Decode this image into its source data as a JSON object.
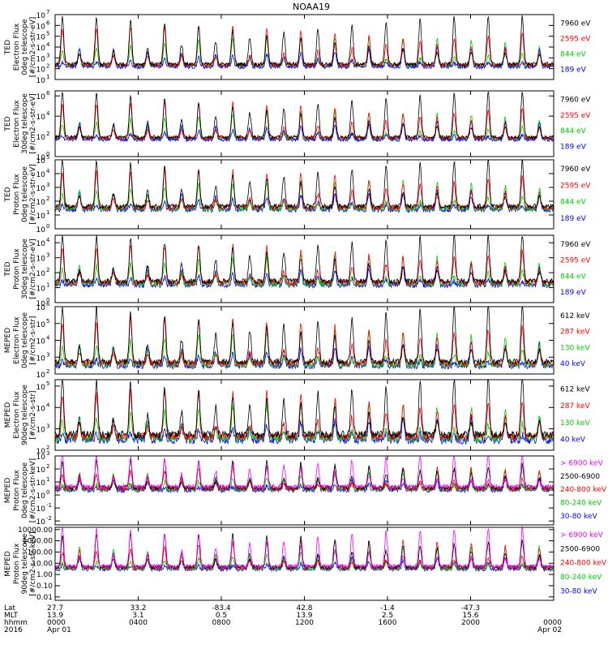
{
  "chart_data": {
    "type": "line",
    "title": "NOAA19",
    "panels": [
      {
        "instrument": "TED",
        "quantity": "Electron Flux",
        "telescope": "0deg telescope",
        "units": "[#/cm2-s-str-eV]",
        "yticks": [
          {
            "b": "10",
            "e": "1"
          },
          {
            "b": "10",
            "e": "2"
          },
          {
            "b": "10",
            "e": "3"
          },
          {
            "b": "10",
            "e": "4"
          },
          {
            "b": "10",
            "e": "5"
          },
          {
            "b": "10",
            "e": "6"
          },
          {
            "b": "10",
            "e": "7"
          }
        ],
        "ylim": [
          1,
          7
        ],
        "baseline": 2.0,
        "legend": [
          "7960 eV",
          "2595 eV",
          "844 eV",
          "189 eV"
        ],
        "colors": [
          "#000000",
          "#ff0000",
          "#00d000",
          "#0000ff"
        ],
        "order": [
          2,
          3,
          1,
          0
        ]
      },
      {
        "instrument": "TED",
        "quantity": "Electron Flux",
        "telescope": "30deg telescope",
        "units": "[#/cm2-s-str-eV]",
        "yticks": [
          {
            "b": "10",
            "e": "0"
          },
          {
            "b": "10",
            "e": "2"
          },
          {
            "b": "10",
            "e": "4"
          },
          {
            "b": "10",
            "e": "6"
          }
        ],
        "ylim": [
          0,
          6.5
        ],
        "baseline": 1.5,
        "legend": [
          "7960 eV",
          "2595 eV",
          "844 eV",
          "189 eV"
        ],
        "colors": [
          "#000000",
          "#ff0000",
          "#00d000",
          "#0000ff"
        ],
        "order": [
          2,
          3,
          1,
          0
        ]
      },
      {
        "instrument": "TED",
        "quantity": "Proton Flux",
        "telescope": "0deg telescope",
        "units": "[#/cm2-s-str-eV]",
        "yticks": [
          {
            "b": "10",
            "e": "0"
          },
          {
            "b": "10",
            "e": "1"
          },
          {
            "b": "10",
            "e": "2"
          },
          {
            "b": "10",
            "e": "3"
          },
          {
            "b": "10",
            "e": "4"
          },
          {
            "b": "10",
            "e": "5"
          }
        ],
        "ylim": [
          0,
          5
        ],
        "baseline": 1.2,
        "legend": [
          "7960 eV",
          "2595 eV",
          "844 eV",
          "189 eV"
        ],
        "colors": [
          "#000000",
          "#ff0000",
          "#00d000",
          "#0000ff"
        ],
        "order": [
          3,
          2,
          1,
          0
        ]
      },
      {
        "instrument": "TED",
        "quantity": "Proton Flux",
        "telescope": "30deg telescope",
        "units": "[#/cm2-s-str-eV]",
        "yticks": [
          {
            "b": "10",
            "e": "0"
          },
          {
            "b": "10",
            "e": "1"
          },
          {
            "b": "10",
            "e": "2"
          },
          {
            "b": "10",
            "e": "3"
          },
          {
            "b": "10",
            "e": "4"
          }
        ],
        "ylim": [
          0,
          4.5
        ],
        "baseline": 1.0,
        "legend": [
          "7960 eV",
          "2595 eV",
          "844 eV",
          "189 eV"
        ],
        "colors": [
          "#000000",
          "#ff0000",
          "#00d000",
          "#0000ff"
        ],
        "order": [
          3,
          2,
          1,
          0
        ]
      },
      {
        "instrument": "MEPED",
        "quantity": "Electron Flux",
        "telescope": "0deg telescope",
        "units": "[#/cm2-s-str]",
        "yticks": [
          {
            "b": "10",
            "e": "2"
          },
          {
            "b": "10",
            "e": "3"
          },
          {
            "b": "10",
            "e": "4"
          },
          {
            "b": "10",
            "e": "5"
          },
          {
            "b": "10",
            "e": "6"
          }
        ],
        "ylim": [
          2,
          6
        ],
        "baseline": 2.3,
        "legend": [
          "612 keV",
          "287 keV",
          "130 keV",
          "40 keV"
        ],
        "colors": [
          "#000000",
          "#ff0000",
          "#00d000",
          "#0000ff"
        ],
        "order": [
          3,
          2,
          1,
          0
        ]
      },
      {
        "instrument": "MEPED",
        "quantity": "Electron Flux",
        "telescope": "90deg telescope",
        "units": "[#/cm2-s-str]",
        "yticks": [
          {
            "b": "10",
            "e": "2"
          },
          {
            "b": "10",
            "e": "3"
          },
          {
            "b": "10",
            "e": "4"
          },
          {
            "b": "10",
            "e": "5"
          }
        ],
        "ylim": [
          2,
          5.3
        ],
        "baseline": 2.3,
        "legend": [
          "612 keV",
          "287 keV",
          "130 keV",
          "40 keV"
        ],
        "colors": [
          "#000000",
          "#ff0000",
          "#00d000",
          "#0000ff"
        ],
        "order": [
          3,
          2,
          1,
          0
        ]
      },
      {
        "instrument": "MEPED",
        "quantity": "Proton Flux",
        "telescope": "0deg telescope",
        "units": "[#/cm2-s-str-keV]",
        "yticks": [
          {
            "b": "10",
            "e": "-2"
          },
          {
            "b": "10",
            "e": "-1"
          },
          {
            "b": "10",
            "e": "0"
          },
          {
            "b": "10",
            "e": "1"
          },
          {
            "b": "10",
            "e": "2"
          },
          {
            "b": "10",
            "e": "3"
          }
        ],
        "ylim": [
          -2.3,
          3
        ],
        "baseline": 0.2,
        "legend": [
          "> 6900 keV",
          "2500-6900",
          "240-800 keV",
          "80-240 keV",
          "30-80 keV"
        ],
        "colors": [
          "#ff00ff",
          "#000000",
          "#ff0000",
          "#00d000",
          "#0000ff"
        ],
        "order": [
          4,
          3,
          2,
          1,
          0
        ]
      },
      {
        "instrument": "MEPED",
        "quantity": "Proton Flux",
        "telescope": "90deg telescope",
        "units": "[#/cm2-s-str-keV]",
        "yticks": [
          {
            "b": "0.01"
          },
          {
            "b": "0.10"
          },
          {
            "b": "1.00"
          },
          {
            "b": "10.00"
          },
          {
            "b": "100.00"
          },
          {
            "b": "1000.00"
          },
          {
            "b": "10000.00"
          }
        ],
        "ylim": [
          -2.3,
          4.2
        ],
        "baseline": 0.3,
        "legend": [
          "> 6900 keV",
          "2500-6900",
          "240-800 keV",
          "80-240 keV",
          "30-80 keV"
        ],
        "colors": [
          "#ff00ff",
          "#000000",
          "#ff0000",
          "#00d000",
          "#0000ff"
        ],
        "order": [
          4,
          3,
          2,
          1,
          0
        ]
      }
    ],
    "x_axis": {
      "row_labels": [
        "Lat",
        "MLT",
        "hhmm",
        "2016"
      ],
      "ticks": [
        {
          "hour": 0,
          "lat": "27.7",
          "mlt": "13.9",
          "hhmm": "0000",
          "date": "Apr 01"
        },
        {
          "hour": 4,
          "lat": "33.2",
          "mlt": "3.1",
          "hhmm": "0400",
          "date": ""
        },
        {
          "hour": 8,
          "lat": "-83.4",
          "mlt": "0.5",
          "hhmm": "0800",
          "date": ""
        },
        {
          "hour": 12,
          "lat": "42.8",
          "mlt": "13.9",
          "hhmm": "1200",
          "date": ""
        },
        {
          "hour": 16,
          "lat": "-1.4",
          "mlt": "2.5",
          "hhmm": "1600",
          "date": ""
        },
        {
          "hour": 20,
          "lat": "-47.3",
          "mlt": "15.6",
          "hhmm": "2000",
          "date": ""
        },
        {
          "hour": 24,
          "lat": "",
          "mlt": "",
          "hhmm": "0000",
          "date": "Apr 02"
        }
      ],
      "xlim": [
        0,
        24
      ]
    }
  }
}
